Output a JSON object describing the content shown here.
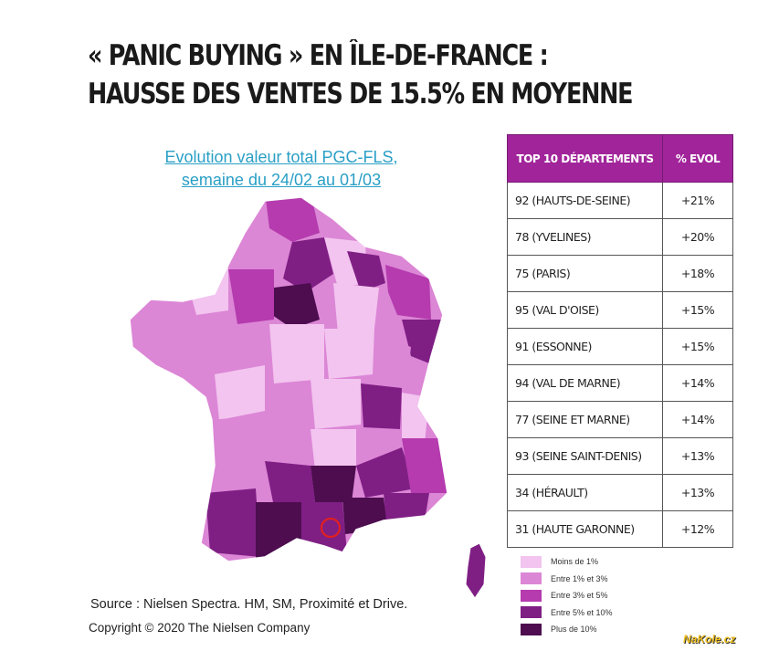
{
  "title": {
    "line1": "« PANIC BUYING » EN ÎLE-DE-FRANCE :",
    "line2": "HAUSSE DES VENTES DE 15.5% EN MOYENNE"
  },
  "subtitle": {
    "line1": "Evolution valeur total PGC-FLS,",
    "line2": "semaine du 24/02 au 01/03"
  },
  "table": {
    "header_dept": "TOP 10 DÉPARTEMENTS",
    "header_evol": "% EVOL",
    "rows": [
      {
        "dept": "92 (HAUTS-DE-SEINE)",
        "evol": "+21%"
      },
      {
        "dept": "78 (YVELINES)",
        "evol": "+20%"
      },
      {
        "dept": "75 (PARIS)",
        "evol": "+18%"
      },
      {
        "dept": "95 (VAL D'OISE)",
        "evol": "+15%"
      },
      {
        "dept": "91 (ESSONNE)",
        "evol": "+15%"
      },
      {
        "dept": "94 (VAL DE MARNE)",
        "evol": "+14%"
      },
      {
        "dept": "77 (SEINE ET MARNE)",
        "evol": "+14%"
      },
      {
        "dept": "93 (SEINE SAINT-DENIS)",
        "evol": "+13%"
      },
      {
        "dept": "34 (HÉRAULT)",
        "evol": "+13%"
      },
      {
        "dept": "31 (HAUTE GARONNE)",
        "evol": "+12%"
      }
    ]
  },
  "legend": [
    {
      "label": "Moins de 1%",
      "color": "#f2c4ef"
    },
    {
      "label": "Entre 1% et 3%",
      "color": "#dc86d6"
    },
    {
      "label": "Entre 3% et 5%",
      "color": "#b53bae"
    },
    {
      "label": "Entre 5% et 10%",
      "color": "#7f1f84"
    },
    {
      "label": "Plus de 10%",
      "color": "#4d0d4f"
    }
  ],
  "source": "Source : Nielsen Spectra. HM, SM, Proximité et Drive.",
  "copyright": "Copyright © 2020 The Nielsen Company",
  "watermark": "NaKole.cz",
  "colors": {
    "header": "#a1249a",
    "marker": "#e02020",
    "subtitle": "#2a9fc6"
  }
}
